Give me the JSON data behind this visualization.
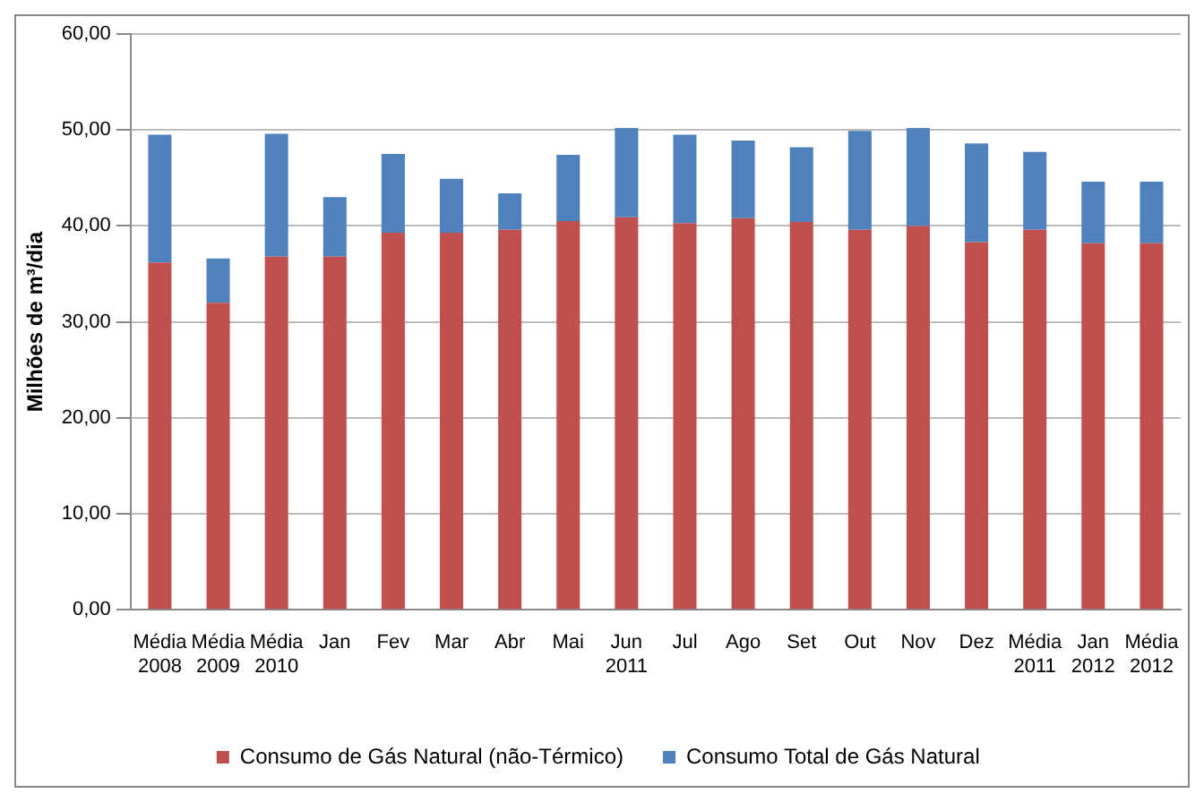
{
  "chart_data": {
    "type": "bar",
    "stacked": true,
    "ylabel": "Milhões de m³/dia",
    "categories": [
      "Média\n2008",
      "Média\n2009",
      "Média\n2010",
      "Jan",
      "Fev",
      "Mar",
      "Abr",
      "Mai",
      "Jun\n2011",
      "Jul",
      "Ago",
      "Set",
      "Out",
      "Nov",
      "Dez",
      "Média\n2011",
      "Jan\n2012",
      "Média\n2012"
    ],
    "series": [
      {
        "name": "Consumo de Gás Natural (não-Térmico)",
        "color": "#c0504d",
        "values": [
          36.2,
          32.0,
          36.8,
          36.8,
          39.3,
          39.3,
          39.6,
          40.5,
          40.9,
          40.3,
          40.8,
          40.4,
          39.6,
          40.0,
          38.3,
          39.6,
          38.2,
          38.2
        ]
      },
      {
        "name": "Consumo Total de Gás Natural",
        "color": "#4f81bd",
        "values": [
          13.3,
          4.6,
          12.8,
          6.2,
          8.2,
          5.6,
          3.8,
          6.9,
          9.3,
          9.2,
          8.1,
          7.8,
          10.3,
          10.2,
          10.3,
          8.1,
          6.4,
          6.4
        ]
      }
    ],
    "ylim": [
      0,
      60
    ],
    "yticks": [
      {
        "value": 0,
        "label": "0,00"
      },
      {
        "value": 10,
        "label": "10,00"
      },
      {
        "value": 20,
        "label": "20,00"
      },
      {
        "value": 30,
        "label": "30,00"
      },
      {
        "value": 40,
        "label": "40,00"
      },
      {
        "value": 50,
        "label": "50,00"
      },
      {
        "value": 60,
        "label": "60,00"
      }
    ],
    "grid": "y",
    "legend": "bottom"
  }
}
